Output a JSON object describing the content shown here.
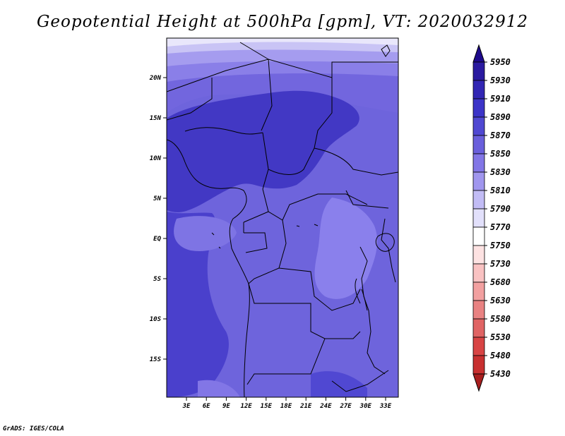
{
  "title": "Geopotential Height at 500hPa [gpm], VT: 2020032912",
  "credit": "GrADS: IGES/COLA",
  "map": {
    "lat_ticks": [
      {
        "label": "20N",
        "lat": 20
      },
      {
        "label": "15N",
        "lat": 15
      },
      {
        "label": "10N",
        "lat": 10
      },
      {
        "label": "5N",
        "lat": 5
      },
      {
        "label": "EQ",
        "lat": 0
      },
      {
        "label": "5S",
        "lat": -5
      },
      {
        "label": "10S",
        "lat": -10
      },
      {
        "label": "15S",
        "lat": -15
      }
    ],
    "lon_ticks": [
      {
        "label": "3E",
        "lon": 3
      },
      {
        "label": "6E",
        "lon": 6
      },
      {
        "label": "9E",
        "lon": 9
      },
      {
        "label": "12E",
        "lon": 12
      },
      {
        "label": "15E",
        "lon": 15
      },
      {
        "label": "18E",
        "lon": 18
      },
      {
        "label": "21E",
        "lon": 21
      },
      {
        "label": "24E",
        "lon": 24
      },
      {
        "label": "27E",
        "lon": 27
      },
      {
        "label": "30E",
        "lon": 30
      },
      {
        "label": "33E",
        "lon": 33
      }
    ]
  },
  "colorbar": {
    "levels": [
      {
        "label": "5950",
        "color": "#1e0a8c"
      },
      {
        "label": "5930",
        "color": "#2a1aa0"
      },
      {
        "label": "5910",
        "color": "#3226b4"
      },
      {
        "label": "5890",
        "color": "#3c34c8"
      },
      {
        "label": "5870",
        "color": "#5048d2"
      },
      {
        "label": "5850",
        "color": "#6a5fdc"
      },
      {
        "label": "5830",
        "color": "#8276e6"
      },
      {
        "label": "5810",
        "color": "#a096ee"
      },
      {
        "label": "5790",
        "color": "#c2bcf5"
      },
      {
        "label": "5770",
        "color": "#e2e0fb"
      },
      {
        "label": "5750",
        "color": "#ffffff"
      },
      {
        "label": "5730",
        "color": "#fde2e2"
      },
      {
        "label": "5680",
        "color": "#f9c2c2"
      },
      {
        "label": "5630",
        "color": "#f2a0a0"
      },
      {
        "label": "5580",
        "color": "#e98282"
      },
      {
        "label": "5530",
        "color": "#e06464"
      },
      {
        "label": "5480",
        "color": "#d84444"
      },
      {
        "label": "5430",
        "color": "#c83030"
      },
      {
        "label": "",
        "color": "#a81e1e"
      }
    ],
    "top_color": "#1e0a8c",
    "bottom_color": "#a81e1e"
  }
}
